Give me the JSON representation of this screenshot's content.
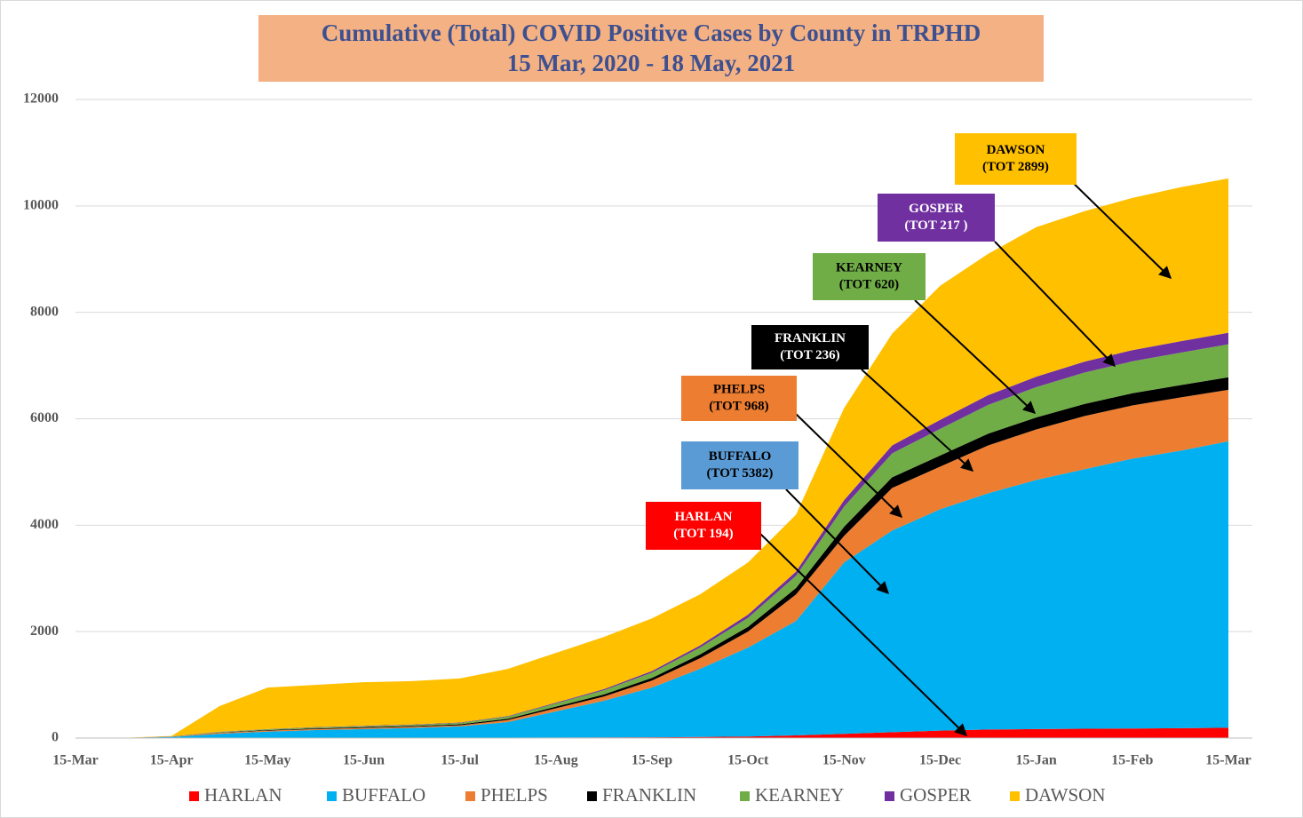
{
  "chart_data": {
    "type": "stacked_area",
    "title": "Cumulative (Total) COVID Positive Cases by County in TRPHD",
    "subtitle": "15 Mar, 2020 - 18 May, 2021",
    "categories": [
      "15-Mar",
      null,
      "15-Apr",
      null,
      "15-May",
      null,
      "15-Jun",
      null,
      "15-Jul",
      null,
      "15-Aug",
      null,
      "15-Sep",
      null,
      "15-Oct",
      null,
      "15-Nov",
      null,
      "15-Dec",
      null,
      "15-Jan",
      null,
      "15-Feb",
      null,
      "15-Mar"
    ],
    "ylim": [
      0,
      12000
    ],
    "yticks": [
      0,
      2000,
      4000,
      6000,
      8000,
      10000,
      12000
    ],
    "grid": true,
    "series": [
      {
        "name": "HARLAN",
        "color": "#ff0000",
        "values": [
          0,
          0,
          0,
          0,
          2,
          3,
          4,
          5,
          6,
          8,
          10,
          12,
          15,
          20,
          30,
          50,
          80,
          110,
          140,
          160,
          170,
          175,
          180,
          185,
          194
        ]
      },
      {
        "name": "BUFFALO",
        "color": "#00b0f0",
        "values": [
          0,
          2,
          20,
          80,
          118,
          147,
          166,
          185,
          214,
          292,
          490,
          688,
          935,
          1280,
          1670,
          2150,
          3220,
          3790,
          4160,
          4440,
          4680,
          4875,
          5070,
          5215,
          5382
        ]
      },
      {
        "name": "PHELPS",
        "color": "#ed7d31",
        "values": [
          0,
          1,
          5,
          20,
          20,
          20,
          20,
          20,
          20,
          40,
          60,
          80,
          130,
          200,
          300,
          500,
          500,
          800,
          800,
          900,
          950,
          1000,
          1000,
          1000,
          968
        ]
      },
      {
        "name": "FRANKLIN",
        "color": "#000000",
        "values": [
          0,
          0,
          2,
          5,
          10,
          12,
          14,
          15,
          18,
          22,
          30,
          40,
          50,
          70,
          90,
          120,
          170,
          200,
          210,
          220,
          225,
          228,
          230,
          232,
          236
        ]
      },
      {
        "name": "KEARNEY",
        "color": "#70ad47",
        "values": [
          0,
          0,
          3,
          10,
          15,
          18,
          20,
          22,
          25,
          40,
          60,
          80,
          100,
          130,
          170,
          230,
          380,
          450,
          500,
          540,
          570,
          590,
          600,
          610,
          620
        ]
      },
      {
        "name": "GOSPER",
        "color": "#7030a0",
        "values": [
          0,
          0,
          1,
          3,
          5,
          6,
          7,
          8,
          9,
          12,
          15,
          20,
          30,
          40,
          60,
          80,
          120,
          150,
          170,
          185,
          195,
          205,
          210,
          214,
          217
        ]
      },
      {
        "name": "DAWSON",
        "color": "#ffc000",
        "values": [
          0,
          2,
          9,
          482,
          780,
          794,
          819,
          815,
          828,
          886,
          935,
          980,
          990,
          960,
          980,
          1070,
          1730,
          2100,
          2520,
          2655,
          2810,
          2827,
          2860,
          2894,
          2899
        ]
      }
    ],
    "annotations": [
      {
        "lines": [
          "DAWSON",
          "(TOT 2899)"
        ],
        "color": "#ffc000",
        "text_color": "#000000"
      },
      {
        "lines": [
          "GOSPER",
          "(TOT 217 )"
        ],
        "color": "#7030a0",
        "text_color": "#ffffff"
      },
      {
        "lines": [
          "KEARNEY",
          "(TOT 620)"
        ],
        "color": "#70ad47",
        "text_color": "#000000"
      },
      {
        "lines": [
          "FRANKLIN",
          "(TOT 236)"
        ],
        "color": "#000000",
        "text_color": "#ffffff"
      },
      {
        "lines": [
          "PHELPS",
          "(TOT 968)"
        ],
        "color": "#ed7d31",
        "text_color": "#000000"
      },
      {
        "lines": [
          "BUFFALO",
          "(TOT 5382)"
        ],
        "color": "#5b9bd5",
        "text_color": "#000000"
      },
      {
        "lines": [
          "HARLAN",
          "(TOT 194)"
        ],
        "color": "#ff0000",
        "text_color": "#ffffff"
      }
    ]
  }
}
